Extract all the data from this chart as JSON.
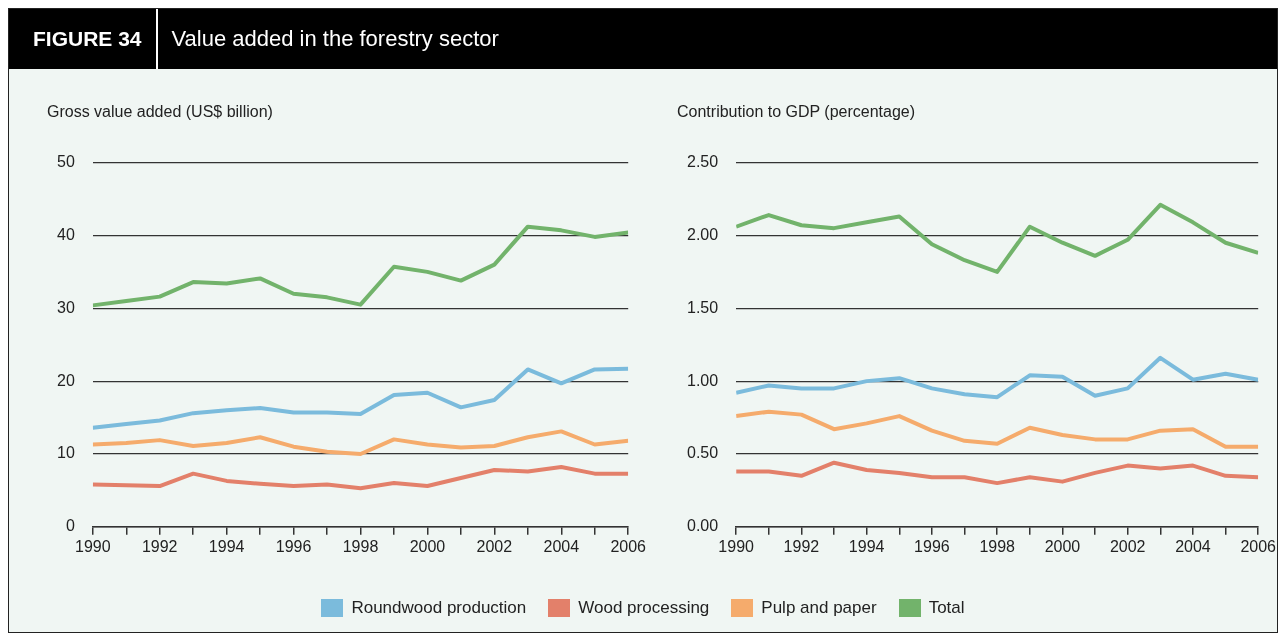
{
  "chart_data": [
    {
      "type": "line",
      "title": "FIGURE 34",
      "subtitle": "Value added in the forestry sector",
      "ylabel": "Gross value added (US$ billion)",
      "legend": "bottom",
      "grid": "y",
      "marker": "none",
      "x": [
        1990,
        1991,
        1992,
        1993,
        1994,
        1995,
        1996,
        1997,
        1998,
        1999,
        2000,
        2001,
        2002,
        2003,
        2004,
        2005,
        2006
      ],
      "xlim": [
        1990,
        2006
      ],
      "xticks": [
        1990,
        {
          "value": 1991,
          "label": null
        },
        1992,
        {
          "value": 1993,
          "label": null
        },
        1994,
        {
          "value": 1995,
          "label": null
        },
        1996,
        {
          "value": 1997,
          "label": null
        },
        1998,
        {
          "value": 1999,
          "label": null
        },
        2000,
        {
          "value": 2001,
          "label": null
        },
        2002,
        {
          "value": 2003,
          "label": null
        },
        2004,
        {
          "value": 2005,
          "label": null
        },
        2006
      ],
      "ylim": [
        0,
        50
      ],
      "yticks": [
        0,
        10,
        20,
        30,
        40,
        50
      ],
      "series": [
        {
          "name": "Roundwood production",
          "color": "#7bbbdc",
          "values": [
            13.6,
            14.1,
            14.6,
            15.6,
            16,
            16.3,
            15.7,
            15.7,
            15.5,
            18.1,
            18.4,
            16.4,
            17.4,
            21.6,
            19.7,
            21.6,
            21.7
          ]
        },
        {
          "name": "Wood processing",
          "color": "#e3806a",
          "values": [
            5.8,
            5.7,
            5.6,
            7.3,
            6.3,
            5.9,
            5.6,
            5.8,
            5.3,
            6,
            5.6,
            6.7,
            7.8,
            7.6,
            8.2,
            7.3,
            7.3
          ]
        },
        {
          "name": "Pulp and paper",
          "color": "#f5ab6c",
          "values": [
            11.3,
            11.5,
            11.9,
            11.1,
            11.5,
            12.3,
            11,
            10.3,
            10,
            12,
            11.3,
            10.9,
            11.1,
            12.3,
            13.1,
            11.3,
            11.8
          ]
        },
        {
          "name": "Total",
          "color": "#72b36b",
          "values": [
            30.4,
            31,
            31.6,
            33.6,
            33.4,
            34.1,
            32,
            31.5,
            30.5,
            35.7,
            35,
            33.8,
            36,
            41.2,
            40.7,
            39.8,
            40.4
          ]
        }
      ]
    },
    {
      "type": "line",
      "ylabel": "Contribution to GDP (percentage)",
      "grid": "y",
      "marker": "none",
      "x": [
        1990,
        1991,
        1992,
        1993,
        1994,
        1995,
        1996,
        1997,
        1998,
        1999,
        2000,
        2001,
        2002,
        2003,
        2004,
        2005,
        2006
      ],
      "xlim": [
        1990,
        2006
      ],
      "xticks": [
        1990,
        {
          "value": 1991,
          "label": null
        },
        1992,
        {
          "value": 1993,
          "label": null
        },
        1994,
        {
          "value": 1995,
          "label": null
        },
        1996,
        {
          "value": 1997,
          "label": null
        },
        1998,
        {
          "value": 1999,
          "label": null
        },
        2000,
        {
          "value": 2001,
          "label": null
        },
        2002,
        {
          "value": 2003,
          "label": null
        },
        2004,
        {
          "value": 2005,
          "label": null
        },
        2006
      ],
      "ylim": [
        0,
        2.5
      ],
      "yticks": [
        {
          "value": 0,
          "label": "0.00"
        },
        {
          "value": 0.5,
          "label": "0.50"
        },
        {
          "value": 1,
          "label": "1.00"
        },
        {
          "value": 1.5,
          "label": "1.50"
        },
        {
          "value": 2,
          "label": "2.00"
        },
        {
          "value": 2.5,
          "label": "2.50"
        }
      ],
      "series": [
        {
          "color": "#7bbbdc",
          "values": [
            0.92,
            0.97,
            0.95,
            0.95,
            1.0,
            1.02,
            0.95,
            0.91,
            0.89,
            1.04,
            1.03,
            0.9,
            0.95,
            1.16,
            1.01,
            1.05,
            1.01
          ]
        },
        {
          "color": "#e3806a",
          "values": [
            0.38,
            0.38,
            0.35,
            0.44,
            0.39,
            0.37,
            0.34,
            0.34,
            0.3,
            0.34,
            0.31,
            0.37,
            0.42,
            0.4,
            0.42,
            0.35,
            0.34
          ]
        },
        {
          "color": "#f5ab6c",
          "values": [
            0.76,
            0.79,
            0.77,
            0.67,
            0.71,
            0.76,
            0.66,
            0.59,
            0.57,
            0.68,
            0.63,
            0.6,
            0.6,
            0.66,
            0.67,
            0.55,
            0.55
          ]
        },
        {
          "color": "#72b36b",
          "values": [
            2.06,
            2.14,
            2.07,
            2.05,
            2.09,
            2.13,
            1.94,
            1.83,
            1.75,
            2.06,
            1.95,
            1.86,
            1.97,
            2.21,
            2.09,
            1.95,
            1.88
          ]
        }
      ]
    }
  ]
}
